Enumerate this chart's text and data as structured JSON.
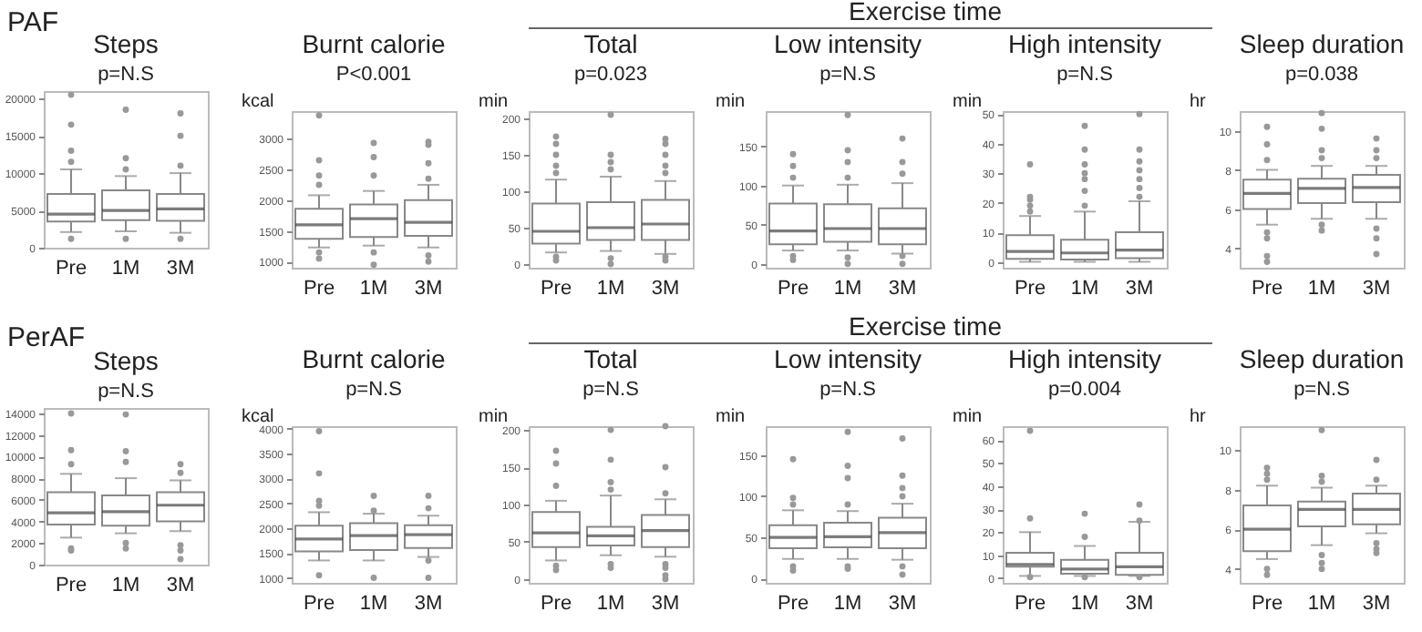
{
  "chart_data": [
    {
      "type": "box",
      "title": "Steps",
      "subtitle": "p=N.S",
      "annotations": [
        "PAF"
      ],
      "categories": [
        "Pre",
        "1M",
        "3M"
      ],
      "ylim": [
        0,
        21000
      ],
      "yticks": [
        0,
        5000,
        10000,
        15000,
        20000
      ],
      "boxes": [
        {
          "low": 2100,
          "q1": 3500,
          "median": 4500,
          "q3": 7200,
          "high": 10500,
          "outliers": [
            1200,
            11500,
            13000,
            16500,
            20500
          ]
        },
        {
          "low": 2200,
          "q1": 3700,
          "median": 5000,
          "q3": 7700,
          "high": 9600,
          "outliers": [
            1200,
            10500,
            12000,
            18500
          ]
        },
        {
          "low": 2000,
          "q1": 3600,
          "median": 5200,
          "q3": 7200,
          "high": 10000,
          "outliers": [
            1200,
            11000,
            15000,
            18000
          ]
        }
      ]
    },
    {
      "type": "box",
      "title": "Burnt calorie",
      "subtitle": "P<0.001",
      "ylabel": "kcal",
      "categories": [
        "Pre",
        "1M",
        "3M"
      ],
      "ylim": [
        900,
        3450
      ],
      "yticks": [
        1000,
        1500,
        2000,
        2500,
        3000
      ],
      "boxes": [
        {
          "low": 1230,
          "q1": 1370,
          "median": 1600,
          "q3": 1860,
          "high": 2080,
          "outliers": [
            1050,
            1150,
            2250,
            2400,
            2650,
            3380
          ]
        },
        {
          "low": 1260,
          "q1": 1400,
          "median": 1700,
          "q3": 1930,
          "high": 2150,
          "outliers": [
            950,
            1150,
            2400,
            2700,
            2930
          ]
        },
        {
          "low": 1230,
          "q1": 1420,
          "median": 1640,
          "q3": 2000,
          "high": 2250,
          "outliers": [
            1000,
            1100,
            2350,
            2600,
            2900,
            2950
          ]
        }
      ]
    },
    {
      "type": "box",
      "title": "Total",
      "subtitle": "p=0.023",
      "ylabel": "min",
      "annotations": [
        "Exercise time"
      ],
      "categories": [
        "Pre",
        "1M",
        "3M"
      ],
      "ylim": [
        -5,
        210
      ],
      "yticks": [
        0,
        50,
        100,
        150,
        200
      ],
      "boxes": [
        {
          "low": 16,
          "q1": 28,
          "median": 45,
          "q3": 83,
          "high": 116,
          "outliers": [
            5,
            10,
            125,
            135,
            150,
            165,
            175
          ]
        },
        {
          "low": 18,
          "q1": 33,
          "median": 50,
          "q3": 85,
          "high": 120,
          "outliers": [
            0,
            8,
            130,
            140,
            150,
            205
          ]
        },
        {
          "low": 14,
          "q1": 33,
          "median": 55,
          "q3": 88,
          "high": 114,
          "outliers": [
            5,
            10,
            125,
            135,
            150,
            165,
            172
          ]
        }
      ]
    },
    {
      "type": "box",
      "title": "Low intensity",
      "subtitle": "p=N.S",
      "ylabel": "min",
      "categories": [
        "Pre",
        "1M",
        "3M"
      ],
      "ylim": [
        -5,
        195
      ],
      "yticks": [
        0,
        50,
        100,
        150
      ],
      "boxes": [
        {
          "low": 17,
          "q1": 25,
          "median": 42,
          "q3": 77,
          "high": 100,
          "outliers": [
            5,
            10,
            110,
            125,
            140
          ]
        },
        {
          "low": 17,
          "q1": 28,
          "median": 45,
          "q3": 76,
          "high": 101,
          "outliers": [
            0,
            8,
            110,
            130,
            145,
            190
          ]
        },
        {
          "low": 13,
          "q1": 25,
          "median": 45,
          "q3": 71,
          "high": 103,
          "outliers": [
            0,
            10,
            115,
            130,
            160
          ]
        }
      ]
    },
    {
      "type": "box",
      "title": "High intensity",
      "subtitle": "p=N.S",
      "ylabel": "min",
      "categories": [
        "Pre",
        "1M",
        "3M"
      ],
      "ylim": [
        -2,
        51
      ],
      "yticks": [
        0,
        10,
        20,
        30,
        40,
        50
      ],
      "boxes": [
        {
          "low": 0,
          "q1": 1,
          "median": 3.5,
          "q3": 9,
          "high": 15.5,
          "outliers": [
            17,
            19,
            21,
            22,
            33
          ]
        },
        {
          "low": 0,
          "q1": 0.8,
          "median": 3,
          "q3": 7.5,
          "high": 17,
          "outliers": [
            19,
            24,
            28,
            30,
            33,
            38,
            46
          ]
        },
        {
          "low": 0,
          "q1": 1.2,
          "median": 4,
          "q3": 10,
          "high": 20.5,
          "outliers": [
            22,
            25,
            28,
            31,
            34,
            38,
            50
          ]
        }
      ]
    },
    {
      "type": "box",
      "title": "Sleep duration",
      "subtitle": "p=0.038",
      "ylabel": "hr",
      "categories": [
        "Pre",
        "1M",
        "3M"
      ],
      "ylim": [
        3,
        11
      ],
      "yticks": [
        4,
        6,
        8,
        10
      ],
      "boxes": [
        {
          "low": 5.2,
          "q1": 6,
          "median": 6.8,
          "q3": 7.5,
          "high": 8,
          "outliers": [
            3.3,
            3.6,
            4.5,
            4.8,
            8.5,
            9.3,
            10.2
          ]
        },
        {
          "low": 5.5,
          "q1": 6.3,
          "median": 7.05,
          "q3": 7.55,
          "high": 8.2,
          "outliers": [
            4.9,
            5.2,
            8.6,
            9,
            10.1,
            10.9
          ]
        },
        {
          "low": 5.5,
          "q1": 6.35,
          "median": 7.1,
          "q3": 7.75,
          "high": 8.2,
          "outliers": [
            3.7,
            4.5,
            5,
            8.6,
            9,
            9.6
          ]
        }
      ]
    },
    {
      "type": "box",
      "title": "Steps",
      "subtitle": "p=N.S",
      "annotations": [
        "PerAF"
      ],
      "categories": [
        "Pre",
        "1M",
        "3M"
      ],
      "ylim": [
        0,
        14500
      ],
      "yticks": [
        0,
        2000,
        4000,
        6000,
        8000,
        10000,
        12000,
        14000
      ],
      "boxes": [
        {
          "low": 2500,
          "q1": 3700,
          "median": 4800,
          "q3": 6700,
          "high": 8400,
          "outliers": [
            1300,
            1500,
            9300,
            10600,
            14000
          ]
        },
        {
          "low": 2900,
          "q1": 3600,
          "median": 4900,
          "q3": 6400,
          "high": 8000,
          "outliers": [
            1500,
            2000,
            9500,
            10500,
            13900
          ]
        },
        {
          "low": 3100,
          "q1": 4000,
          "median": 5500,
          "q3": 6700,
          "high": 7800,
          "outliers": [
            500,
            1300,
            1800,
            8500,
            9300
          ]
        }
      ]
    },
    {
      "type": "box",
      "title": "Burnt calorie",
      "subtitle": "p=N.S",
      "ylabel": "kcal",
      "categories": [
        "Pre",
        "1M",
        "3M"
      ],
      "ylim": [
        900,
        4050
      ],
      "yticks": [
        1000,
        1500,
        2000,
        2500,
        3000,
        3500,
        4000
      ],
      "boxes": [
        {
          "low": 1350,
          "q1": 1530,
          "median": 1780,
          "q3": 2050,
          "high": 2320,
          "outliers": [
            1050,
            2450,
            2550,
            3100,
            3950
          ]
        },
        {
          "low": 1350,
          "q1": 1560,
          "median": 1850,
          "q3": 2100,
          "high": 2290,
          "outliers": [
            1000,
            2350,
            2650
          ]
        },
        {
          "low": 1420,
          "q1": 1600,
          "median": 1870,
          "q3": 2060,
          "high": 2250,
          "outliers": [
            1000,
            1350,
            2400,
            2650
          ]
        }
      ]
    },
    {
      "type": "box",
      "title": "Total",
      "subtitle": "p=N.S",
      "ylabel": "min",
      "annotations": [
        "Exercise time"
      ],
      "categories": [
        "Pre",
        "1M",
        "3M"
      ],
      "ylim": [
        -5,
        205
      ],
      "yticks": [
        0,
        50,
        100,
        150,
        200
      ],
      "boxes": [
        {
          "low": 25,
          "q1": 43,
          "median": 62,
          "q3": 90,
          "high": 105,
          "outliers": [
            12,
            18,
            125,
            155,
            172
          ]
        },
        {
          "low": 32,
          "q1": 45,
          "median": 58,
          "q3": 70,
          "high": 112,
          "outliers": [
            15,
            20,
            120,
            130,
            160,
            200
          ]
        },
        {
          "low": 30,
          "q1": 43,
          "median": 65,
          "q3": 86,
          "high": 107,
          "outliers": [
            0,
            5,
            15,
            20,
            115,
            150,
            205
          ]
        }
      ]
    },
    {
      "type": "box",
      "title": "Low intensity",
      "subtitle": "p=N.S",
      "ylabel": "min",
      "categories": [
        "Pre",
        "1M",
        "3M"
      ],
      "ylim": [
        -5,
        185
      ],
      "yticks": [
        0,
        50,
        100,
        150
      ],
      "boxes": [
        {
          "low": 24,
          "q1": 37,
          "median": 50,
          "q3": 65,
          "high": 83,
          "outliers": [
            10,
            15,
            90,
            98,
            145
          ]
        },
        {
          "low": 24,
          "q1": 38,
          "median": 51,
          "q3": 68,
          "high": 82,
          "outliers": [
            12,
            15,
            90,
            122,
            137,
            178
          ]
        },
        {
          "low": 23,
          "q1": 37,
          "median": 56,
          "q3": 74,
          "high": 91,
          "outliers": [
            5,
            15,
            100,
            110,
            125,
            170
          ]
        }
      ]
    },
    {
      "type": "box",
      "title": "High intensity",
      "subtitle": "p=0.004",
      "ylabel": "min",
      "categories": [
        "Pre",
        "1M",
        "3M"
      ],
      "ylim": [
        -2,
        66
      ],
      "yticks": [
        0,
        10,
        20,
        30,
        40,
        50,
        60
      ],
      "boxes": [
        {
          "low": 1,
          "q1": 5,
          "median": 6,
          "q3": 11,
          "high": 20,
          "outliers": [
            0.5,
            26,
            64
          ]
        },
        {
          "low": 1,
          "q1": 2,
          "median": 4,
          "q3": 8,
          "high": 14,
          "outliers": [
            0.5,
            18,
            28
          ]
        },
        {
          "low": 1,
          "q1": 1.5,
          "median": 5,
          "q3": 11,
          "high": 24.5,
          "outliers": [
            0.5,
            25,
            32
          ]
        }
      ]
    },
    {
      "type": "box",
      "title": "Sleep duration",
      "subtitle": "p=N.S",
      "ylabel": "hr",
      "categories": [
        "Pre",
        "1M",
        "3M"
      ],
      "ylim": [
        3.3,
        11.2
      ],
      "yticks": [
        4,
        6,
        8,
        10
      ],
      "boxes": [
        {
          "low": 4.5,
          "q1": 4.9,
          "median": 6,
          "q3": 7.2,
          "high": 8.2,
          "outliers": [
            3.7,
            4,
            8.5,
            8.8,
            9.1
          ]
        },
        {
          "low": 5.2,
          "q1": 6.15,
          "median": 7,
          "q3": 7.4,
          "high": 8.1,
          "outliers": [
            4,
            4.3,
            4.7,
            8.4,
            8.7,
            11
          ]
        },
        {
          "low": 5.8,
          "q1": 6.25,
          "median": 7,
          "q3": 7.8,
          "high": 8.2,
          "outliers": [
            4.8,
            5,
            5.3,
            8.5,
            9.5
          ]
        }
      ]
    }
  ]
}
